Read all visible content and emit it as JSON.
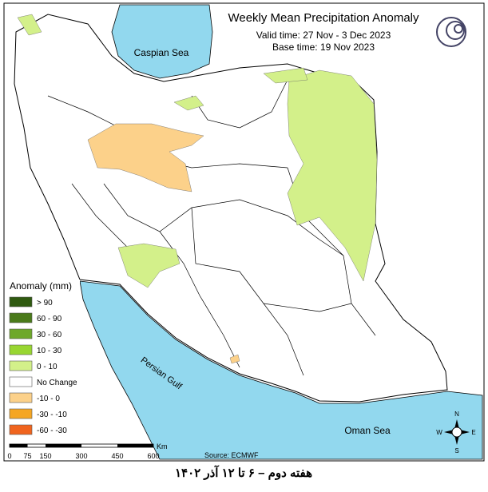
{
  "header": {
    "title": "Weekly Mean Precipitation Anomaly",
    "valid_time": "Valid time: 27 Nov - 3 Dec 2023",
    "base_time": "Base time: 19 Nov 2023"
  },
  "seas": {
    "caspian": "Caspian Sea",
    "gulf": "Persian Gulf",
    "oman": "Oman Sea"
  },
  "legend": {
    "title": "Anomaly (mm)",
    "items": [
      {
        "label": "> 90",
        "color": "#2f5a10"
      },
      {
        "label": "60 - 90",
        "color": "#4a7a1a"
      },
      {
        "label": "30 - 60",
        "color": "#6ea82a"
      },
      {
        "label": "10 - 30",
        "color": "#98d631"
      },
      {
        "label": "0 - 10",
        "color": "#d3f08a"
      },
      {
        "label": "No Change",
        "color": "#ffffff"
      },
      {
        "label": "-10 - 0",
        "color": "#fcd18a"
      },
      {
        "label": "-30 - -10",
        "color": "#f5a623"
      },
      {
        "label": "-60 - -30",
        "color": "#f0641e"
      }
    ]
  },
  "scale": {
    "ticks": [
      "0",
      "75",
      "150",
      "300",
      "450",
      "600"
    ],
    "unit": "Km"
  },
  "source": "Source: ECMWF",
  "compass": {
    "n": "N",
    "e": "E",
    "s": "S",
    "w": "W"
  },
  "footer": "هفته دوم – ۶ تا ۱۲ آذر ۱۴۰۲"
}
